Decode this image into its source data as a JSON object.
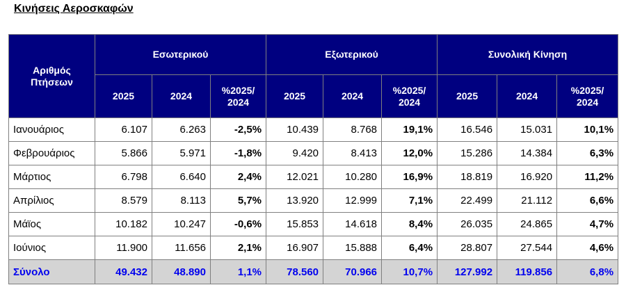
{
  "title": "Κινήσεις Αεροσκαφών",
  "header": {
    "row_label": [
      "Αριθμός",
      "Πτήσεων"
    ],
    "groups": [
      "Εσωτερικού",
      "Εξωτερικού",
      "Συνολική Κίνηση"
    ],
    "sub": [
      "2025",
      "2024",
      "%2025/",
      "2024"
    ]
  },
  "rows": [
    {
      "month": "Ιανουάριος",
      "values": [
        "6.107",
        "6.263",
        "-2,5%",
        "10.439",
        "8.768",
        "19,1%",
        "16.546",
        "15.031",
        "10,1%"
      ]
    },
    {
      "month": "Φεβρουάριος",
      "values": [
        "5.866",
        "5.971",
        "-1,8%",
        "9.420",
        "8.413",
        "12,0%",
        "15.286",
        "14.384",
        "6,3%"
      ]
    },
    {
      "month": "Μάρτιος",
      "values": [
        "6.798",
        "6.640",
        "2,4%",
        "12.021",
        "10.280",
        "16,9%",
        "18.819",
        "16.920",
        "11,2%"
      ]
    },
    {
      "month": "Απρίλιος",
      "values": [
        "8.579",
        "8.113",
        "5,7%",
        "13.920",
        "12.999",
        "7,1%",
        "22.499",
        "21.112",
        "6,6%"
      ]
    },
    {
      "month": "Μάϊος",
      "values": [
        "10.182",
        "10.247",
        "-0,6%",
        "15.853",
        "14.618",
        "8,4%",
        "26.035",
        "24.865",
        "4,7%"
      ]
    },
    {
      "month": "Ιούνιος",
      "values": [
        "11.900",
        "11.656",
        "2,1%",
        "16.907",
        "15.888",
        "6,4%",
        "28.807",
        "27.544",
        "4,6%"
      ]
    }
  ],
  "total": {
    "label": "Σύνολο",
    "values": [
      "49.432",
      "48.890",
      "1,1%",
      "78.560",
      "70.966",
      "10,7%",
      "127.992",
      "119.856",
      "6,8%"
    ]
  }
}
